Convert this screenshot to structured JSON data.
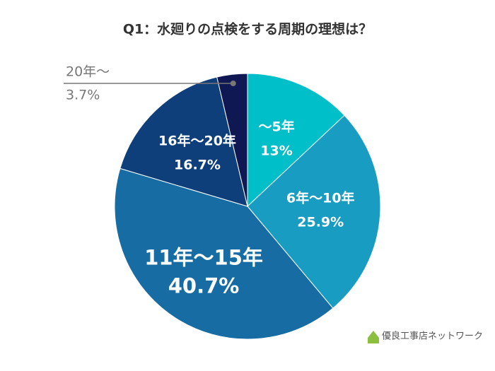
{
  "chart_data": {
    "type": "pie",
    "title": "Q1：水廻りの点検をする周期の理想は？",
    "categories": [
      "～5年",
      "6年～10年",
      "11年～15年",
      "16年～20年",
      "20年～"
    ],
    "values": [
      13,
      25.9,
      40.7,
      16.7,
      3.7
    ],
    "value_labels": [
      "13%",
      "25.9%",
      "40.7%",
      "16.7%",
      "3.7%"
    ],
    "colors": [
      "#00bfc9",
      "#189cc1",
      "#166ca3",
      "#0e3f7b",
      "#0f1853"
    ],
    "logo": "優良工事店ネットワーク"
  }
}
